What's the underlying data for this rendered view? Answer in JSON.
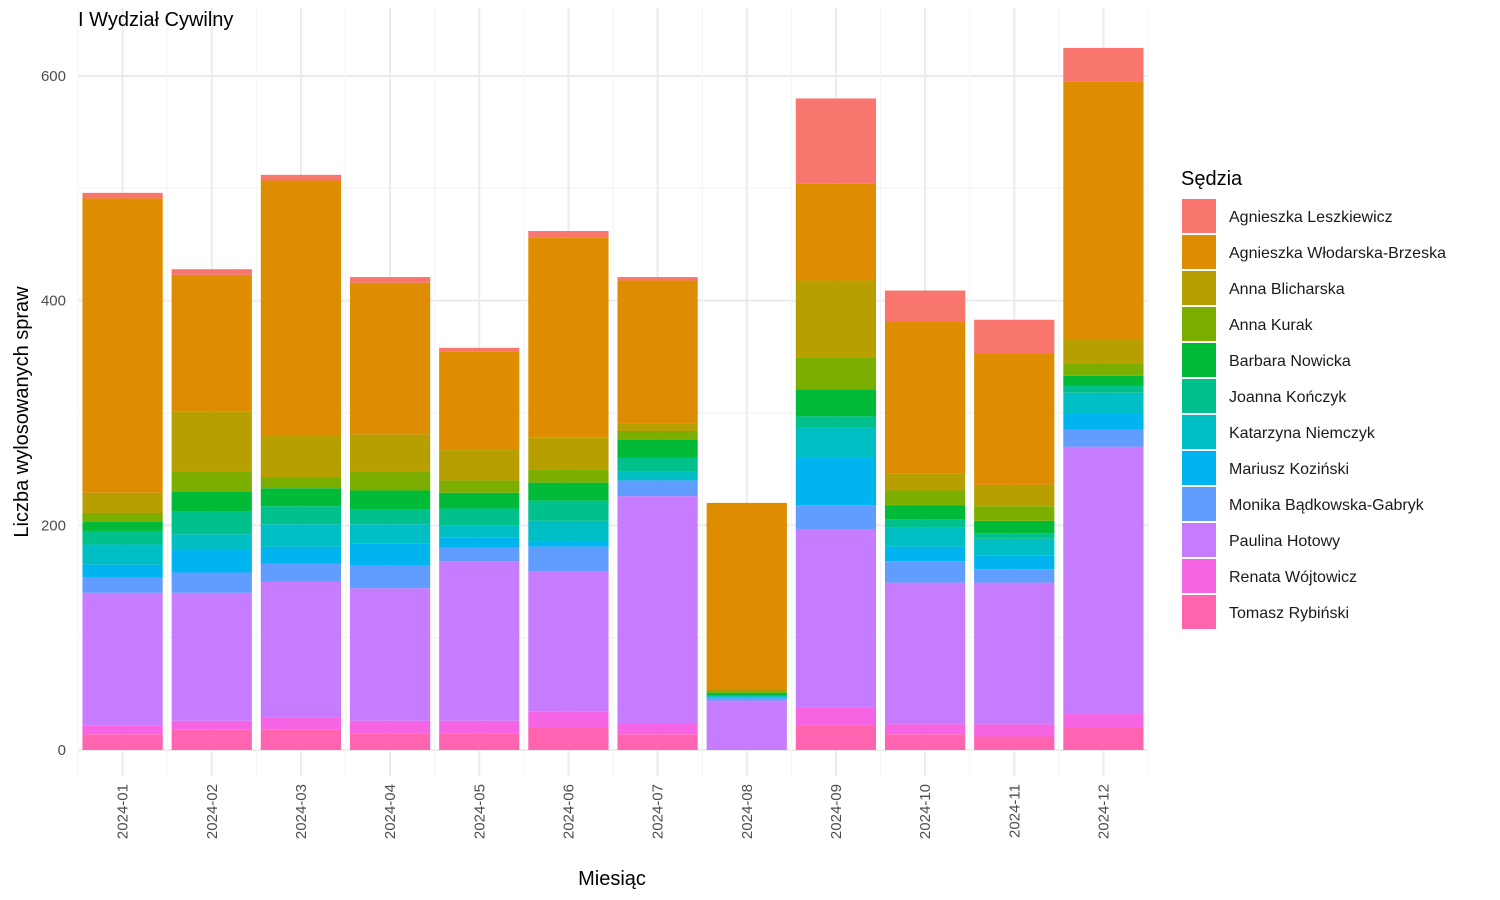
{
  "chart_data": {
    "type": "bar",
    "stacked": true,
    "title": "I Wydział Cywilny",
    "xlabel": "Miesiąc",
    "ylabel": "Liczba wylosowanych spraw",
    "ylim": [
      0,
      640
    ],
    "yticks": [
      0,
      200,
      400,
      600
    ],
    "grid": true,
    "legend_title": "Sędzia",
    "legend_position": "right",
    "categories": [
      "2024-01",
      "2024-02",
      "2024-03",
      "2024-04",
      "2024-05",
      "2024-06",
      "2024-07",
      "2024-08",
      "2024-09",
      "2024-10",
      "2024-11",
      "2024-12"
    ],
    "series": [
      {
        "name": "Agnieszka Leszkiewicz",
        "color": "#F8766D",
        "values": [
          5,
          5,
          5,
          5,
          3,
          6,
          3,
          0,
          76,
          28,
          30,
          30
        ]
      },
      {
        "name": "Agnieszka Włodarska-Brzeska",
        "color": "#DE8C00",
        "values": [
          262,
          122,
          227,
          135,
          88,
          178,
          127,
          167,
          86,
          135,
          117,
          230
        ]
      },
      {
        "name": "Anna Blicharska",
        "color": "#B79F00",
        "values": [
          18,
          53,
          37,
          33,
          27,
          28,
          7,
          0,
          69,
          15,
          19,
          21
        ]
      },
      {
        "name": "Anna Kurak",
        "color": "#7CAE00",
        "values": [
          8,
          18,
          10,
          17,
          11,
          12,
          8,
          2,
          28,
          13,
          13,
          11
        ]
      },
      {
        "name": "Barbara Nowicka",
        "color": "#00BA38",
        "values": [
          8,
          18,
          16,
          17,
          14,
          16,
          16,
          2,
          24,
          13,
          11,
          9
        ]
      },
      {
        "name": "Joanna Kończyk",
        "color": "#00C08B",
        "values": [
          12,
          20,
          16,
          13,
          15,
          18,
          12,
          1,
          10,
          7,
          5,
          6
        ]
      },
      {
        "name": "Katarzyna Niemczyk",
        "color": "#00BFC4",
        "values": [
          18,
          14,
          20,
          17,
          11,
          18,
          8,
          1,
          27,
          17,
          15,
          18
        ]
      },
      {
        "name": "Mariusz Koziński",
        "color": "#00B4F0",
        "values": [
          11,
          20,
          15,
          20,
          9,
          5,
          0,
          1,
          42,
          13,
          12,
          15
        ]
      },
      {
        "name": "Monika Bądkowska-Gabryk",
        "color": "#619CFF",
        "values": [
          14,
          18,
          16,
          20,
          12,
          22,
          14,
          2,
          22,
          19,
          12,
          15
        ]
      },
      {
        "name": "Paulina Hotowy",
        "color": "#C77CFF",
        "values": [
          118,
          114,
          121,
          118,
          142,
          125,
          202,
          44,
          158,
          126,
          126,
          238
        ]
      },
      {
        "name": "Renata Wójtowicz",
        "color": "#F564E3",
        "values": [
          8,
          8,
          11,
          11,
          11,
          14,
          10,
          0,
          16,
          9,
          11,
          12
        ]
      },
      {
        "name": "Tomasz Rybiński",
        "color": "#FF64B0",
        "values": [
          14,
          18,
          18,
          15,
          15,
          20,
          14,
          0,
          22,
          14,
          12,
          20
        ]
      }
    ]
  }
}
